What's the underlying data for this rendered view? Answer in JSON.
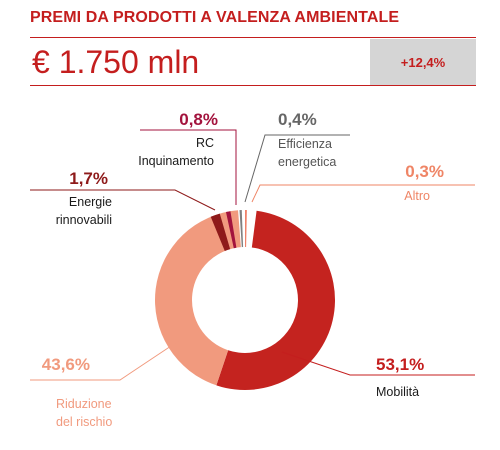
{
  "header": {
    "title": "PREMI DA PRODOTTI A VALENZA AMBIENTALE",
    "amount": "€ 1.750 mln",
    "growth": "+12,4%"
  },
  "colors": {
    "accent": "#c41e1e",
    "growth_box": "#d5d5d5"
  },
  "chart_data": {
    "type": "pie",
    "donut": true,
    "slices": [
      {
        "key": "mobilita",
        "label_lines": [
          "Mobilità"
        ],
        "percent_label": "53,1%",
        "value": 53.1,
        "color": "#c4231f",
        "label_color": "#1a1a1a",
        "pct_color": "#c41e1e"
      },
      {
        "key": "riduzione",
        "label_lines": [
          "Riduzione",
          "del rischio"
        ],
        "percent_label": "43,6%",
        "value": 43.6,
        "color": "#f19a7e",
        "label_color": "#f19a7e",
        "pct_color": "#f19a7e"
      },
      {
        "key": "energie",
        "label_lines": [
          "Energie",
          "rinnovabili"
        ],
        "percent_label": "1,7%",
        "value": 1.7,
        "color": "#8e1a1a",
        "label_color": "#1a1a1a",
        "pct_color": "#8e1a1a"
      },
      {
        "key": "rc",
        "label_lines": [
          "RC",
          "Inquinamento"
        ],
        "percent_label": "0,8%",
        "value": 0.8,
        "color": "#a3133d",
        "label_color": "#1a1a1a",
        "pct_color": "#a3133d"
      },
      {
        "key": "efficienza",
        "label_lines": [
          "Efficienza",
          "energetica"
        ],
        "percent_label": "0,4%",
        "value": 0.4,
        "color": "#808080",
        "label_color": "#555555",
        "pct_color": "#666666"
      },
      {
        "key": "altro",
        "label_lines": [
          "Altro"
        ],
        "percent_label": "0,3%",
        "value": 0.3,
        "color": "#f0826a",
        "label_color": "#ef8566",
        "pct_color": "#ef8566"
      }
    ]
  }
}
